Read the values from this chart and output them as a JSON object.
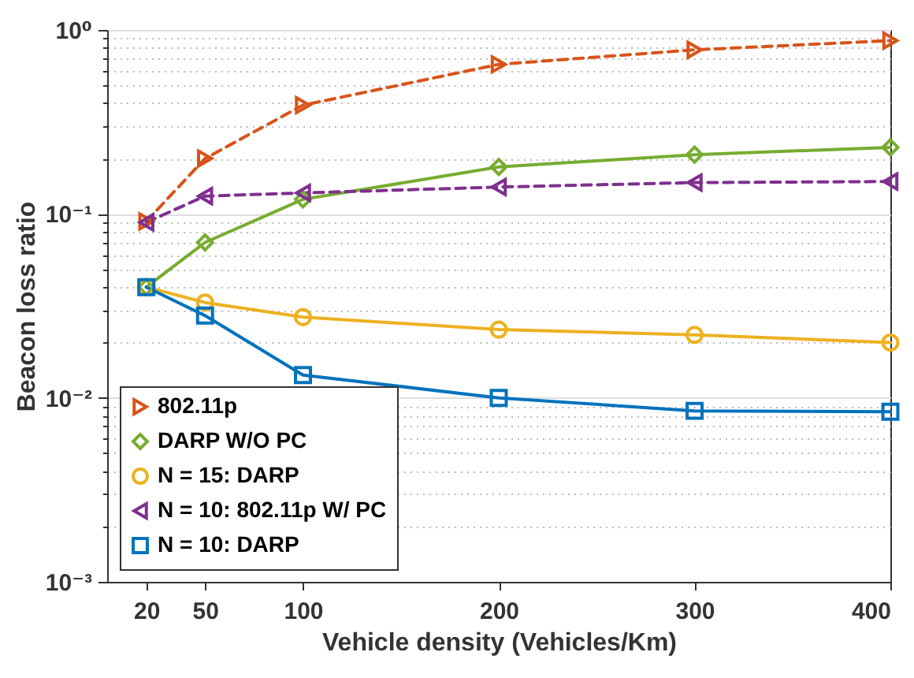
{
  "chart_data": {
    "type": "line",
    "xlabel": "Vehicle density (Vehicles/Km)",
    "ylabel": "Beacon loss ratio",
    "log": "y",
    "grid": "y",
    "legend": "bottom left",
    "x": [
      20,
      50,
      100,
      200,
      300,
      400
    ],
    "xlim": [
      0,
      400
    ],
    "xticks": [
      20,
      50,
      100,
      200,
      300,
      400
    ],
    "ylim": [
      0.001,
      1
    ],
    "yticks": [
      {
        "value": 0.001,
        "label": "10⁻³"
      },
      {
        "value": 0.002,
        "label": null
      },
      {
        "value": 0.003,
        "label": null
      },
      {
        "value": 0.004,
        "label": null
      },
      {
        "value": 0.005,
        "label": null
      },
      {
        "value": 0.006,
        "label": null
      },
      {
        "value": 0.007,
        "label": null
      },
      {
        "value": 0.008,
        "label": null
      },
      {
        "value": 0.009,
        "label": null
      },
      {
        "value": 0.01,
        "label": "10⁻²"
      },
      {
        "value": 0.02,
        "label": null
      },
      {
        "value": 0.03,
        "label": null
      },
      {
        "value": 0.04,
        "label": null
      },
      {
        "value": 0.05,
        "label": null
      },
      {
        "value": 0.06,
        "label": null
      },
      {
        "value": 0.07,
        "label": null
      },
      {
        "value": 0.08,
        "label": null
      },
      {
        "value": 0.09,
        "label": null
      },
      {
        "value": 0.1,
        "label": "10⁻¹"
      },
      {
        "value": 0.2,
        "label": null
      },
      {
        "value": 0.3,
        "label": null
      },
      {
        "value": 0.4,
        "label": null
      },
      {
        "value": 0.5,
        "label": null
      },
      {
        "value": 0.6,
        "label": null
      },
      {
        "value": 0.7,
        "label": null
      },
      {
        "value": 0.8,
        "label": null
      },
      {
        "value": 0.9,
        "label": null
      },
      {
        "value": 1,
        "label": "10⁰"
      }
    ],
    "series": [
      {
        "name": "802.11p",
        "color": "#d95319",
        "marker": "triangle-right",
        "line_style": "dashed",
        "values": [
          0.091,
          0.2,
          0.39,
          0.65,
          0.78,
          0.875
        ]
      },
      {
        "name": "DARP W/O PC",
        "color": "#77ac30",
        "marker": "diamond",
        "line_style": "solid",
        "values": [
          0.04,
          0.07,
          0.12,
          0.18,
          0.21,
          0.23
        ]
      },
      {
        "name": "N = 15: DARP",
        "color": "#edb120",
        "marker": "circle",
        "line_style": "solid",
        "values": [
          0.04,
          0.033,
          0.0275,
          0.0235,
          0.022,
          0.02
        ]
      },
      {
        "name": "N = 10: 802.11p W/ PC",
        "color": "#7e2f8e",
        "marker": "triangle-left",
        "line_style": "dashed",
        "values": [
          0.09,
          0.125,
          0.13,
          0.14,
          0.148,
          0.15
        ]
      },
      {
        "name": "N = 10: DARP",
        "color": "#0072bd",
        "marker": "square",
        "line_style": "solid",
        "values": [
          0.04,
          0.028,
          0.0133,
          0.01,
          0.0085,
          0.0084
        ]
      }
    ]
  }
}
